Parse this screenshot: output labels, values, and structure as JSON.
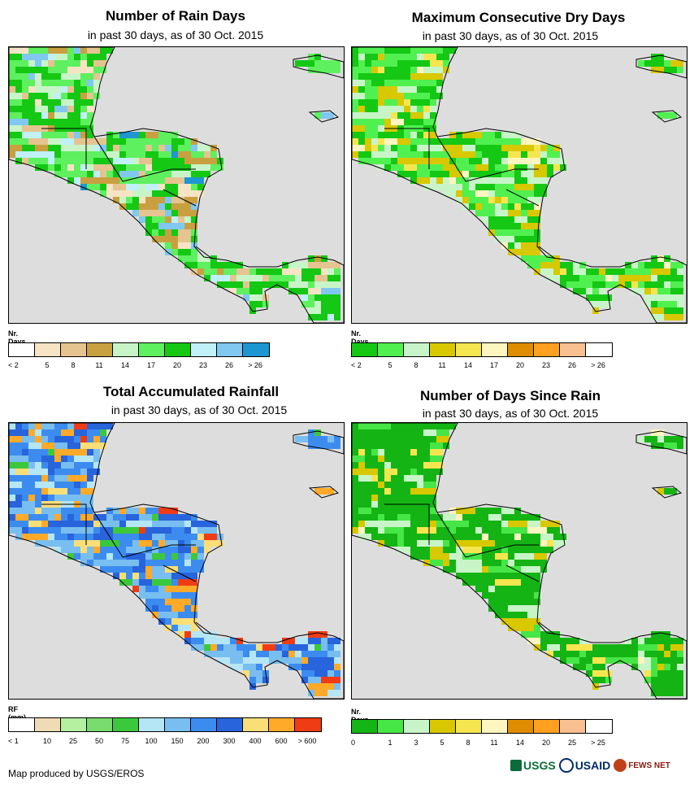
{
  "panels": [
    {
      "title": "Number of Rain Days",
      "subtitle": "in past 30 days, as of 30 Oct. 2015",
      "legend_label": "Nr. Days",
      "legend_colors": [
        "#ffffff",
        "#f7e4c4",
        "#e5c490",
        "#c9a040",
        "#c8f5c8",
        "#5ef05e",
        "#14c814",
        "#c0f0f8",
        "#80c8f0",
        "#1e96d2"
      ],
      "legend_ticks": [
        "< 2",
        "5",
        "8",
        "11",
        "14",
        "17",
        "20",
        "23",
        "26",
        "> 26"
      ],
      "palette": [
        "#f7e4c4",
        "#e5c490",
        "#c9a040",
        "#c8f5c8",
        "#5ef05e",
        "#14c814",
        "#c0f0f8",
        "#80c8f0",
        "#1e96d2"
      ],
      "weights": [
        3,
        4,
        3,
        4,
        8,
        10,
        2,
        2,
        1
      ]
    },
    {
      "title": "Maximum Consecutive Dry Days",
      "subtitle": "in past 30 days, as of 30 Oct. 2015",
      "legend_label": "Nr. Days",
      "legend_colors": [
        "#14c814",
        "#50f050",
        "#c8f5c8",
        "#d8c800",
        "#f5e650",
        "#fff5c0",
        "#e08c00",
        "#ffa020",
        "#f8c090",
        "#ffffff"
      ],
      "legend_ticks": [
        "< 2",
        "5",
        "8",
        "11",
        "14",
        "17",
        "20",
        "23",
        "26",
        "> 26"
      ],
      "palette": [
        "#14c814",
        "#50f050",
        "#c8f5c8",
        "#d8c800",
        "#f5e650",
        "#fff5c0"
      ],
      "weights": [
        10,
        8,
        4,
        5,
        2,
        1
      ]
    },
    {
      "title": "Total Accumulated Rainfall",
      "subtitle": "in past 30 days, as of 30 Oct. 2015",
      "legend_label": "RF (mm)",
      "legend_colors": [
        "#ffffff",
        "#f0dcb4",
        "#b4f0a0",
        "#78dc6e",
        "#3cc83c",
        "#b4e6f5",
        "#78bef0",
        "#3c8cf0",
        "#2864dc",
        "#fade78",
        "#ffaa28",
        "#f03c14"
      ],
      "legend_ticks": [
        "< 1",
        "10",
        "25",
        "50",
        "75",
        "100",
        "150",
        "200",
        "300",
        "400",
        "600",
        "> 600"
      ],
      "palette": [
        "#b4e6f5",
        "#78bef0",
        "#3c8cf0",
        "#2864dc",
        "#fade78",
        "#ffaa28",
        "#f03c14",
        "#3cc83c"
      ],
      "weights": [
        3,
        8,
        10,
        6,
        3,
        3,
        1,
        1
      ]
    },
    {
      "title": "Number of Days Since Rain",
      "subtitle": "in past 30 days, as of 30 Oct. 2015",
      "legend_label": "Nr. Days",
      "legend_colors": [
        "#14b414",
        "#46e646",
        "#c8f5c8",
        "#d8c800",
        "#f5e650",
        "#fff5c0",
        "#e08c00",
        "#ffa020",
        "#f8c090",
        "#ffffff"
      ],
      "legend_ticks": [
        "0",
        "1",
        "3",
        "5",
        "8",
        "11",
        "14",
        "20",
        "25",
        "> 25"
      ],
      "palette": [
        "#14b414",
        "#46e646",
        "#c8f5c8",
        "#d8c800",
        "#f5e650",
        "#fff5c0"
      ],
      "weights": [
        18,
        4,
        2,
        3,
        1,
        1
      ]
    }
  ],
  "credit": "Map produced by USGS/EROS",
  "logos": {
    "usgs": "USGS",
    "usaid": "USAID",
    "fews": "FEWS NET"
  },
  "colors": {
    "ocean": "#dddddd",
    "border": "#000000"
  }
}
